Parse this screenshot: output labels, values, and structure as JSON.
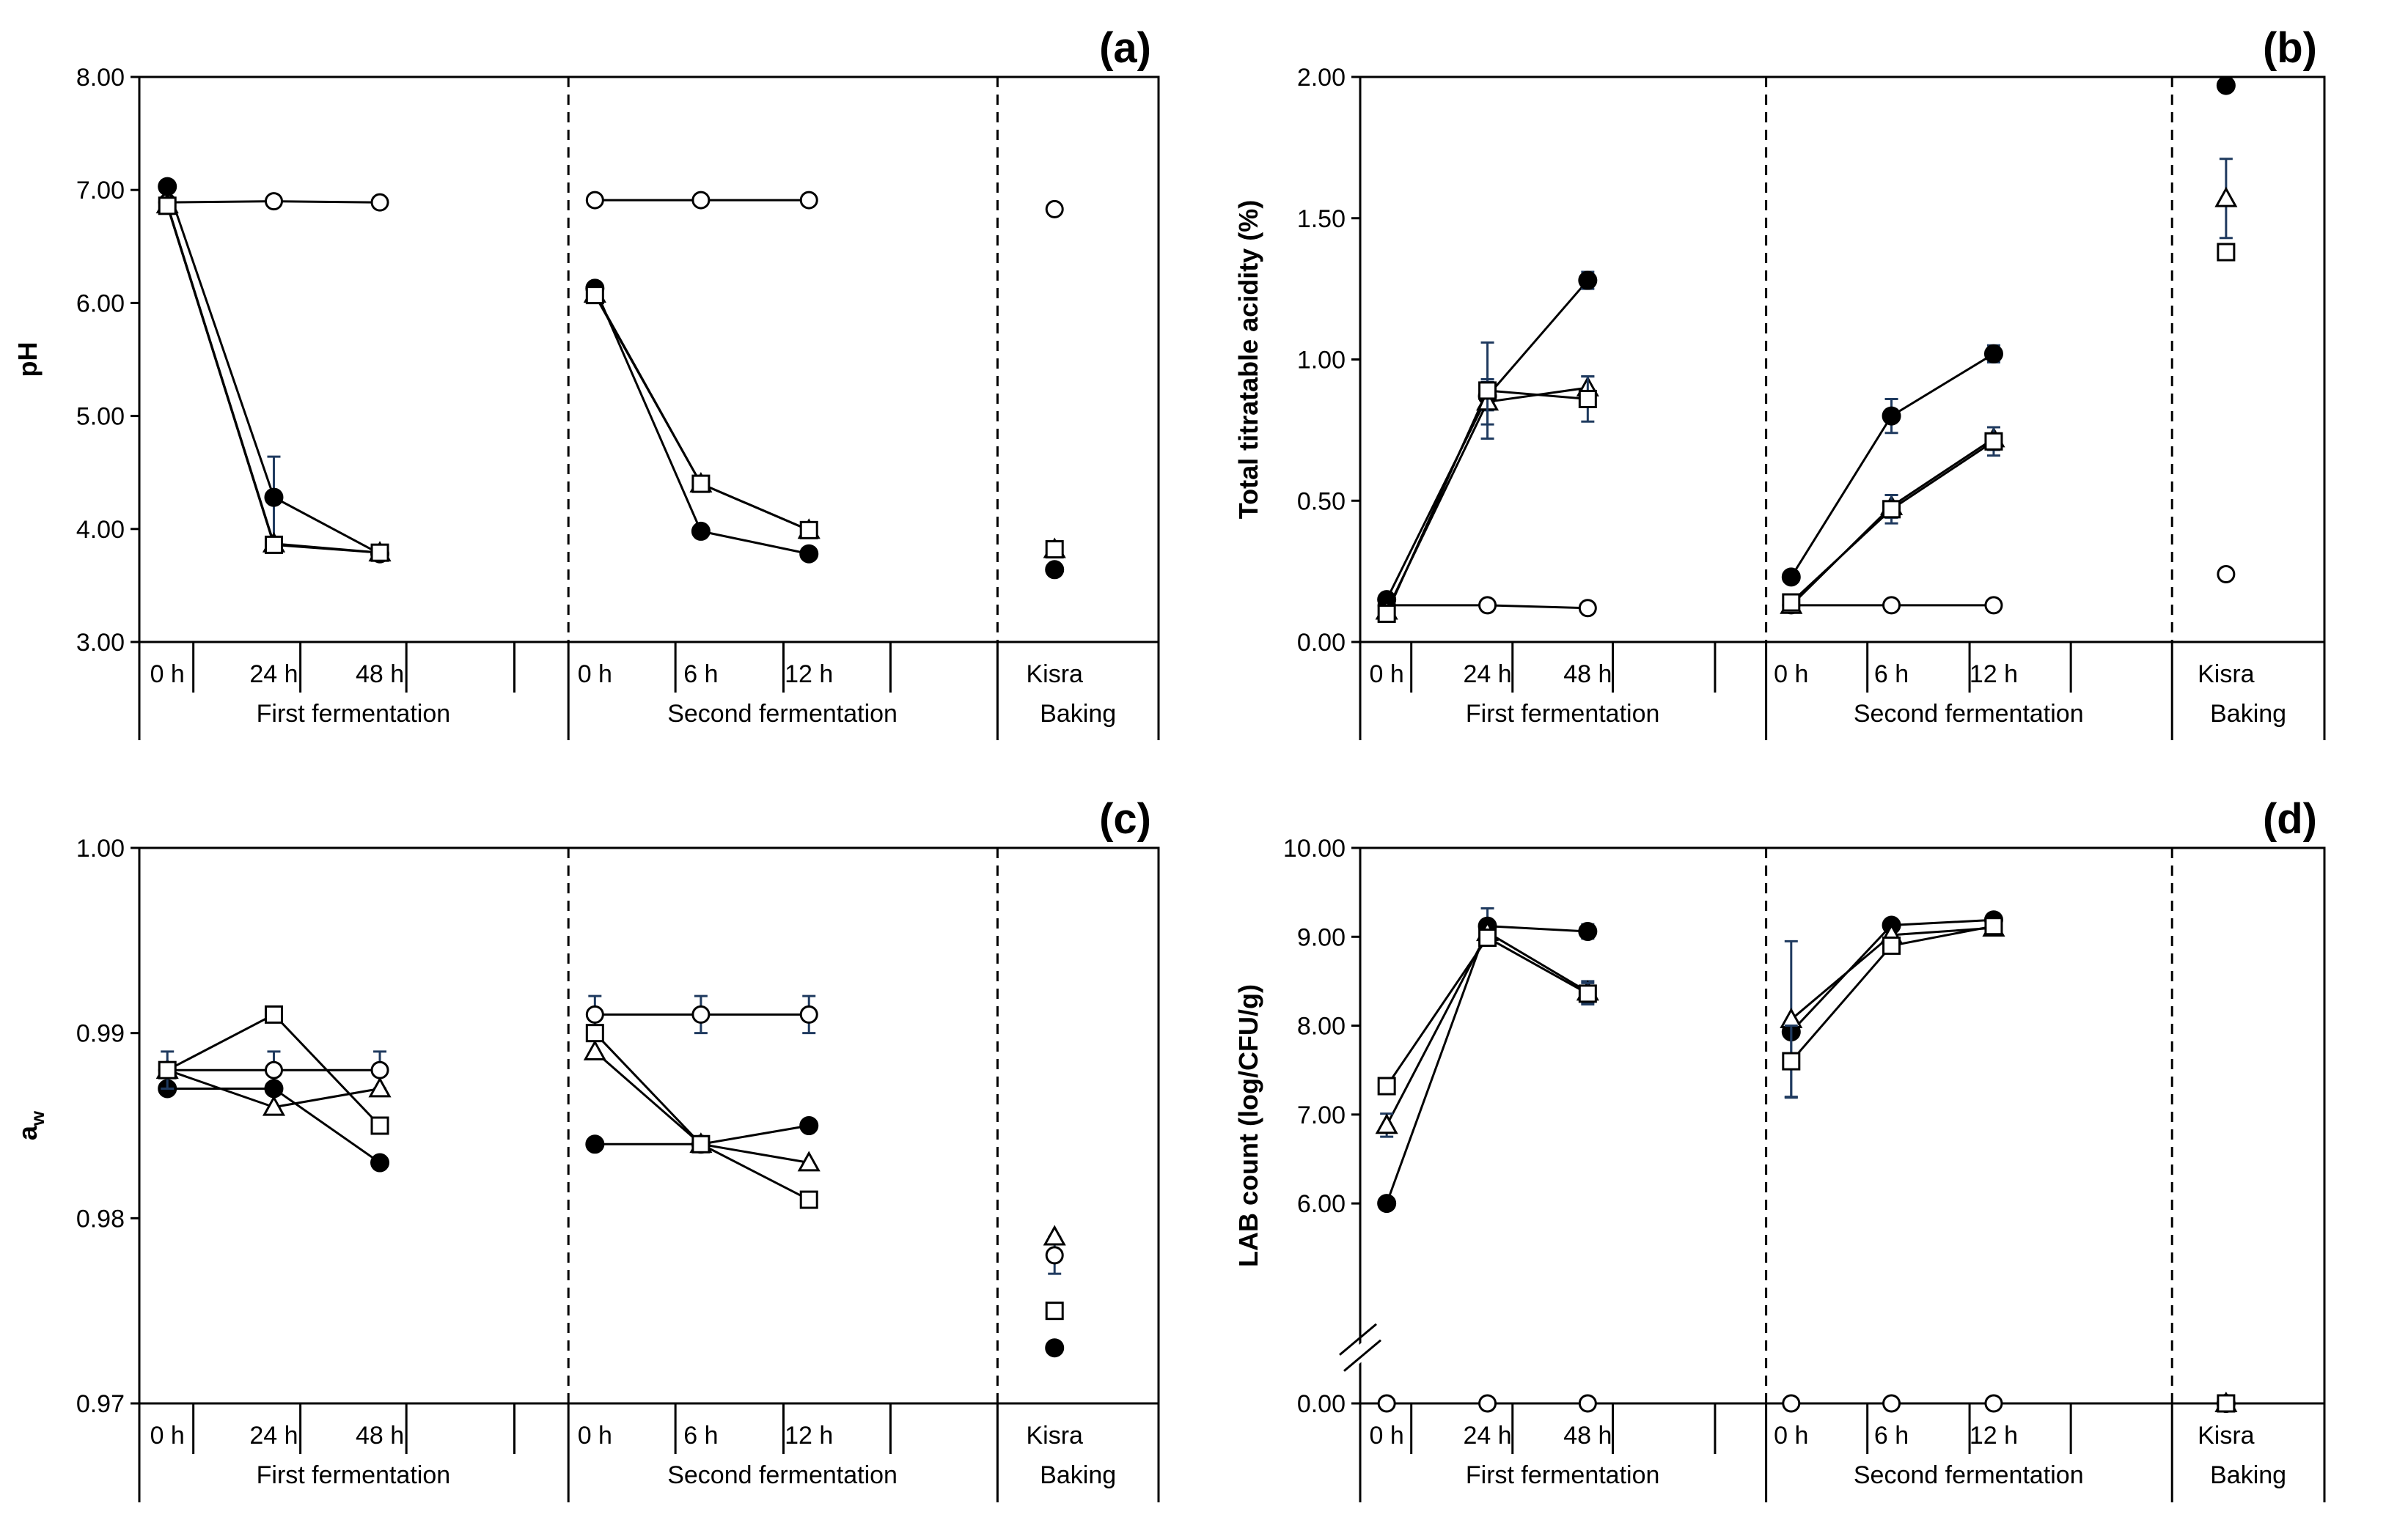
{
  "figure": {
    "groups": [
      "First fermentation",
      "Second fermentation",
      "Baking"
    ],
    "categories": [
      "0 h",
      "24 h",
      "48 h",
      "0 h",
      "6 h",
      "12 h",
      "Kisra"
    ]
  },
  "chart_data": [
    {
      "type": "line",
      "panel_label": "(a)",
      "ylabel": "pH",
      "ylim": [
        3.0,
        8.0
      ],
      "yticks": [
        3.0,
        4.0,
        5.0,
        6.0,
        7.0,
        8.0
      ],
      "tick_decimals": 2,
      "series": [
        {
          "name": "open-circle",
          "marker": "circle-open",
          "values": [
            6.89,
            6.9,
            6.89,
            6.91,
            6.91,
            6.91,
            6.83
          ],
          "errors": [
            0,
            0,
            0,
            0,
            0,
            0,
            0
          ]
        },
        {
          "name": "filled-circle",
          "marker": "circle-filled",
          "values": [
            7.03,
            4.28,
            3.78,
            6.13,
            3.98,
            3.78,
            3.64
          ],
          "errors": [
            0,
            0.36,
            0,
            0,
            0,
            0,
            0
          ]
        },
        {
          "name": "open-triangle",
          "marker": "triangle-open",
          "values": [
            6.87,
            3.87,
            3.79,
            6.08,
            4.4,
            3.99,
            3.82
          ],
          "errors": [
            0,
            0,
            0,
            0,
            0,
            0,
            0
          ]
        },
        {
          "name": "open-square",
          "marker": "square-open",
          "values": [
            6.86,
            3.86,
            3.79,
            6.07,
            4.4,
            3.99,
            3.82
          ],
          "errors": [
            0,
            0,
            0,
            0,
            0,
            0,
            0
          ]
        }
      ]
    },
    {
      "type": "line",
      "panel_label": "(b)",
      "ylabel": "Total titratable acidity (%)",
      "ylim": [
        0.0,
        2.0
      ],
      "yticks": [
        0.0,
        0.5,
        1.0,
        1.5,
        2.0
      ],
      "tick_decimals": 2,
      "series": [
        {
          "name": "open-circle",
          "marker": "circle-open",
          "values": [
            0.13,
            0.13,
            0.12,
            0.13,
            0.13,
            0.13,
            0.24
          ],
          "errors": [
            0,
            0,
            0,
            0,
            0,
            0,
            0
          ]
        },
        {
          "name": "filled-circle",
          "marker": "circle-filled",
          "values": [
            0.15,
            0.87,
            1.28,
            0.23,
            0.8,
            1.02,
            1.97
          ],
          "errors": [
            0,
            0.05,
            0.03,
            0,
            0.06,
            0.03,
            0
          ]
        },
        {
          "name": "open-triangle",
          "marker": "triangle-open",
          "values": [
            0.11,
            0.85,
            0.9,
            0.13,
            0.48,
            0.72,
            1.57
          ],
          "errors": [
            0,
            0.08,
            0.04,
            0,
            0.04,
            0.04,
            0.14
          ]
        },
        {
          "name": "open-square",
          "marker": "square-open",
          "values": [
            0.1,
            0.89,
            0.86,
            0.14,
            0.47,
            0.71,
            1.38
          ],
          "errors": [
            0,
            0.17,
            0.08,
            0,
            0.05,
            0.05,
            0
          ]
        }
      ]
    },
    {
      "type": "line",
      "panel_label": "(c)",
      "ylabel": "a",
      "ylabel_sub": "w",
      "ylim": [
        0.97,
        1.0
      ],
      "yticks": [
        0.97,
        0.98,
        0.99,
        1.0
      ],
      "tick_decimals": 2,
      "series": [
        {
          "name": "open-circle",
          "marker": "circle-open",
          "values": [
            0.988,
            0.988,
            0.988,
            0.991,
            0.991,
            0.991,
            0.978
          ],
          "errors": [
            0,
            0.001,
            0.001,
            0.001,
            0.001,
            0.001,
            0.001
          ]
        },
        {
          "name": "filled-circle",
          "marker": "circle-filled",
          "values": [
            0.987,
            0.987,
            0.983,
            0.984,
            0.984,
            0.985,
            0.973
          ],
          "errors": [
            0,
            0,
            0,
            0,
            0,
            0,
            0
          ]
        },
        {
          "name": "open-triangle",
          "marker": "triangle-open",
          "values": [
            0.988,
            0.986,
            0.987,
            0.989,
            0.984,
            0.983,
            0.979
          ],
          "errors": [
            0,
            0,
            0,
            0,
            0,
            0,
            0
          ]
        },
        {
          "name": "open-square",
          "marker": "square-open",
          "values": [
            0.988,
            0.991,
            0.985,
            0.99,
            0.984,
            0.981,
            0.975
          ],
          "errors": [
            0.001,
            0,
            0,
            0,
            0,
            0,
            0
          ]
        }
      ]
    },
    {
      "type": "line",
      "panel_label": "(d)",
      "ylabel": "LAB count (log/CFU/g)",
      "ylim": [
        5.0,
        10.0
      ],
      "yticks": [
        0.0,
        6.0,
        7.0,
        8.0,
        9.0,
        10.0
      ],
      "axis_break": true,
      "tick_decimals": 2,
      "series": [
        {
          "name": "open-circle",
          "marker": "circle-open",
          "values": [
            0.0,
            0.0,
            0.0,
            0.0,
            0.0,
            0.0,
            0.0
          ],
          "errors": [
            0,
            0,
            0,
            0,
            0,
            0,
            0
          ]
        },
        {
          "name": "filled-circle",
          "marker": "circle-filled",
          "values": [
            6.0,
            9.12,
            9.06,
            7.93,
            9.13,
            9.19,
            0.0
          ],
          "errors": [
            0.05,
            0.2,
            0.08,
            0,
            0,
            0,
            0
          ]
        },
        {
          "name": "open-triangle",
          "marker": "triangle-open",
          "values": [
            6.88,
            9.05,
            8.38,
            8.07,
            9.02,
            9.1,
            0.0
          ],
          "errors": [
            0.13,
            0,
            0.12,
            0.88,
            0,
            0,
            0
          ]
        },
        {
          "name": "open-square",
          "marker": "square-open",
          "values": [
            7.32,
            8.99,
            8.36,
            7.6,
            8.9,
            9.12,
            0.0
          ],
          "errors": [
            0.06,
            0,
            0.12,
            0.4,
            0,
            0,
            0
          ]
        }
      ]
    }
  ]
}
